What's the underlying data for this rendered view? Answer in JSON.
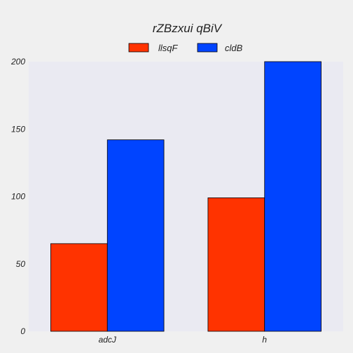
{
  "chart_data": {
    "type": "bar",
    "title": "rZBzxui qBiV",
    "xlabel": "",
    "ylabel": "",
    "categories": [
      "adcJ",
      "h"
    ],
    "series": [
      {
        "name": "llsqF",
        "values": [
          65,
          99
        ],
        "color": "#ff3300"
      },
      {
        "name": "cldB",
        "values": [
          142,
          200
        ],
        "color": "#0044ff"
      }
    ],
    "ylim": [
      0,
      200
    ],
    "yticks": [
      0,
      50,
      100,
      150,
      200
    ],
    "legend_position": "top-center",
    "grid": false,
    "plot_background": "#eaeaf2"
  }
}
